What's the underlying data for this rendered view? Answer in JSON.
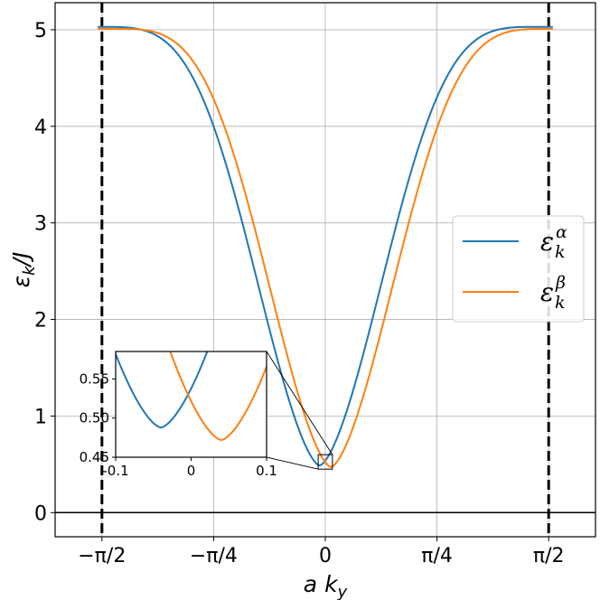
{
  "chart_data": {
    "type": "line",
    "xlabel": "a k_y",
    "ylabel": "ε_k/J",
    "xlim": [
      -1.9,
      1.9
    ],
    "ylim": [
      -0.25,
      5.28
    ],
    "grid": true,
    "xticks": [
      {
        "value": -1.5708,
        "label": "−π/2"
      },
      {
        "value": -0.7854,
        "label": "−π/4"
      },
      {
        "value": 0,
        "label": "0"
      },
      {
        "value": 0.7854,
        "label": "π/4"
      },
      {
        "value": 1.5708,
        "label": "π/2"
      }
    ],
    "yticks": [
      {
        "value": 0,
        "label": "0"
      },
      {
        "value": 1,
        "label": "1"
      },
      {
        "value": 2,
        "label": "2"
      },
      {
        "value": 3,
        "label": "3"
      },
      {
        "value": 4,
        "label": "4"
      },
      {
        "value": 5,
        "label": "5"
      }
    ],
    "reference_lines": {
      "vertical_dashed": [
        -1.5708,
        1.5708
      ],
      "horizontal": [
        0
      ]
    },
    "series": [
      {
        "legend": {
          "base": "ε",
          "sub": "k",
          "sup": "α"
        },
        "color": "#1f77b4",
        "x_range": [
          -1.6,
          1.6
        ],
        "min": {
          "x": -0.04,
          "y": 0.488
        },
        "max": {
          "y": 5.03
        },
        "x": [
          -1.6,
          -1.57,
          -1.4,
          -1.2,
          -1.0,
          -0.8,
          -0.6,
          -0.4,
          -0.2,
          -0.1,
          -0.04,
          0.0,
          0.1,
          0.2,
          0.4,
          0.6,
          0.8,
          1.0,
          1.2,
          1.4,
          1.55,
          1.6
        ],
        "y": [
          4.64,
          4.78,
          4.95,
          4.75,
          3.84,
          2.96,
          2.27,
          1.57,
          0.92,
          0.61,
          0.49,
          0.52,
          0.67,
          0.98,
          1.68,
          2.42,
          3.4,
          4.14,
          4.8,
          5.03,
          4.72,
          4.52
        ]
      },
      {
        "legend": {
          "base": "ε",
          "sub": "k",
          "sup": "β"
        },
        "color": "#ff7f0e",
        "x_range": [
          -1.6,
          1.6
        ],
        "min": {
          "x": 0.04,
          "y": 0.472
        },
        "max": {
          "y": 5.01
        },
        "x": [
          -1.6,
          -1.55,
          -1.4,
          -1.2,
          -1.0,
          -0.8,
          -0.6,
          -0.4,
          -0.2,
          -0.1,
          0.0,
          0.04,
          0.1,
          0.2,
          0.4,
          0.6,
          0.8,
          1.0,
          1.2,
          1.4,
          1.57,
          1.6
        ],
        "y": [
          4.5,
          4.78,
          5.02,
          4.8,
          4.12,
          3.19,
          2.34,
          1.62,
          0.98,
          0.68,
          0.5,
          0.47,
          0.57,
          0.87,
          1.52,
          2.25,
          3.02,
          3.88,
          4.65,
          4.98,
          4.79,
          4.62
        ]
      }
    ],
    "inset": {
      "xlim": [
        -0.1,
        0.1
      ],
      "ylim": [
        0.45,
        0.585
      ],
      "xticks": [
        {
          "value": -0.1,
          "label": "-0.1"
        },
        {
          "value": 0,
          "label": "0"
        },
        {
          "value": 0.1,
          "label": "0.1"
        }
      ],
      "yticks": [
        {
          "value": 0.45,
          "label": "0.45"
        },
        {
          "value": 0.5,
          "label": "0.50"
        },
        {
          "value": 0.55,
          "label": "0.55"
        }
      ],
      "zoom_box": {
        "xlim": [
          -0.05,
          0.05
        ],
        "ylim": [
          0.45,
          0.6
        ]
      }
    },
    "legend_position": "center-right"
  }
}
